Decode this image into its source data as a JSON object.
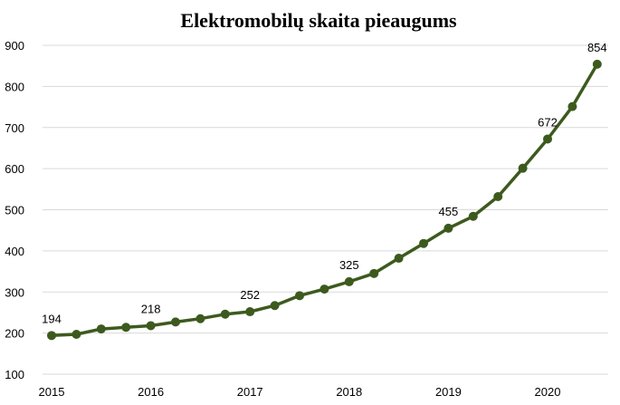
{
  "chart_data": {
    "type": "line",
    "title": "Elektromobilų skaita pieaugums",
    "xlabel": "",
    "ylabel": "",
    "ylim": [
      100,
      900
    ],
    "y_ticks": [
      "100",
      "200",
      "300",
      "400",
      "500",
      "600",
      "700",
      "800",
      "900"
    ],
    "x_tick_labels": [
      "2015",
      "2016",
      "2017",
      "2018",
      "2019",
      "2020"
    ],
    "grid": true,
    "legend": "none",
    "colors": {
      "line": "#3d5a1e",
      "marker": "#3d5a1e",
      "grid": "#d9d9d9"
    },
    "series": [
      {
        "values": [
          194,
          197,
          210,
          214,
          218,
          227,
          235,
          246,
          252,
          267,
          291,
          307,
          325,
          345,
          382,
          418,
          455,
          484,
          532,
          601,
          672,
          751,
          854
        ],
        "data_labels": [
          {
            "index": 0,
            "text": "194"
          },
          {
            "index": 4,
            "text": "218"
          },
          {
            "index": 8,
            "text": "252"
          },
          {
            "index": 12,
            "text": "325"
          },
          {
            "index": 16,
            "text": "455"
          },
          {
            "index": 20,
            "text": "672"
          },
          {
            "index": 22,
            "text": "854"
          }
        ]
      }
    ]
  }
}
